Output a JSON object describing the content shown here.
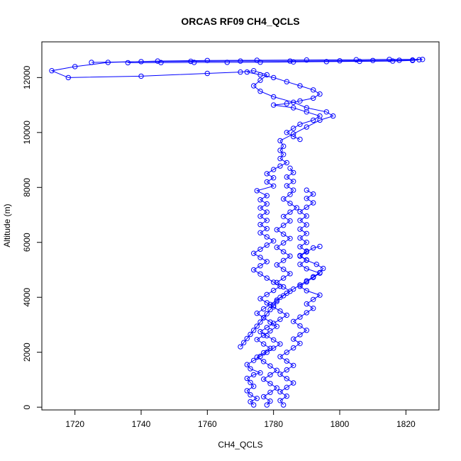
{
  "chart_data": {
    "type": "scatter",
    "title": "ORCAS RF09 CH4_QCLS",
    "xlabel": "CH4_QCLS",
    "ylabel": "Altitude (m)",
    "xlim": [
      1710,
      1830
    ],
    "ylim": [
      -100,
      13300
    ],
    "x_ticks": [
      1720,
      1740,
      1760,
      1780,
      1800,
      1820
    ],
    "x_tick_labels": [
      "1720",
      "1740",
      "1760",
      "1780",
      "1800",
      "1820"
    ],
    "y_ticks": [
      0,
      2000,
      4000,
      6000,
      8000,
      10000,
      12000
    ],
    "y_tick_labels": [
      "0",
      "2000",
      "4000",
      "6000",
      "8000",
      "10000",
      "12000"
    ],
    "grid": false,
    "legend": "none",
    "series_color": "#0000ff",
    "marker": "open-circle",
    "connect_points": true,
    "series": [
      {
        "values": [
          [
            1774,
            80
          ],
          [
            1773,
            200
          ],
          [
            1775,
            320
          ],
          [
            1773,
            450
          ],
          [
            1772,
            600
          ],
          [
            1774,
            760
          ],
          [
            1773,
            900
          ],
          [
            1772,
            1050
          ],
          [
            1774,
            1180
          ],
          [
            1776,
            1250
          ],
          [
            1773,
            1400
          ],
          [
            1772,
            1550
          ],
          [
            1774,
            1700
          ],
          [
            1776,
            1850
          ],
          [
            1778,
            2000
          ],
          [
            1780,
            2150
          ],
          [
            1782,
            2300
          ],
          [
            1780,
            2450
          ],
          [
            1778,
            2600
          ],
          [
            1776,
            2750
          ],
          [
            1778,
            2900
          ],
          [
            1780,
            3050
          ],
          [
            1782,
            3200
          ],
          [
            1784,
            3350
          ],
          [
            1782,
            3500
          ],
          [
            1780,
            3650
          ],
          [
            1778,
            3800
          ],
          [
            1776,
            3950
          ],
          [
            1778,
            4100
          ],
          [
            1780,
            4250
          ],
          [
            1782,
            4400
          ],
          [
            1780,
            4550
          ],
          [
            1778,
            4700
          ],
          [
            1776,
            4850
          ],
          [
            1774,
            5000
          ],
          [
            1776,
            5150
          ],
          [
            1778,
            5300
          ],
          [
            1776,
            5450
          ],
          [
            1774,
            5600
          ],
          [
            1776,
            5750
          ],
          [
            1778,
            5900
          ],
          [
            1780,
            6050
          ],
          [
            1778,
            6200
          ],
          [
            1776,
            6350
          ],
          [
            1778,
            6500
          ],
          [
            1776,
            6650
          ],
          [
            1778,
            6800
          ],
          [
            1776,
            6950
          ],
          [
            1778,
            7100
          ],
          [
            1776,
            7250
          ],
          [
            1778,
            7400
          ],
          [
            1776,
            7550
          ],
          [
            1778,
            7700
          ],
          [
            1775,
            7880
          ],
          [
            1780,
            8050
          ],
          [
            1778,
            8200
          ],
          [
            1780,
            8350
          ],
          [
            1778,
            8500
          ],
          [
            1780,
            8650
          ],
          [
            1782,
            8780
          ],
          [
            1784,
            8900
          ],
          [
            1782,
            9050
          ],
          [
            1783,
            9200
          ],
          [
            1782,
            9350
          ],
          [
            1783,
            9500
          ],
          [
            1782,
            9700
          ],
          [
            1786,
            9950
          ],
          [
            1790,
            10200
          ],
          [
            1794,
            10450
          ],
          [
            1798,
            10600
          ],
          [
            1796,
            10750
          ],
          [
            1790,
            10900
          ],
          [
            1786,
            11100
          ],
          [
            1780,
            11300
          ],
          [
            1776,
            11500
          ],
          [
            1774,
            11700
          ],
          [
            1776,
            11900
          ],
          [
            1778,
            12100
          ],
          [
            1774,
            12250
          ],
          [
            1770,
            12200
          ],
          [
            1760,
            12150
          ],
          [
            1740,
            12050
          ],
          [
            1718,
            12000
          ],
          [
            1713,
            12250
          ],
          [
            1720,
            12400
          ],
          [
            1730,
            12550
          ],
          [
            1745,
            12600
          ],
          [
            1760,
            12620
          ],
          [
            1775,
            12630
          ],
          [
            1790,
            12640
          ],
          [
            1805,
            12650
          ],
          [
            1815,
            12660
          ],
          [
            1825,
            12660
          ]
        ]
      },
      {
        "values": [
          [
            1778,
            80
          ],
          [
            1779,
            220
          ],
          [
            1777,
            380
          ],
          [
            1779,
            540
          ],
          [
            1781,
            700
          ],
          [
            1779,
            860
          ],
          [
            1777,
            1020
          ],
          [
            1779,
            1180
          ],
          [
            1781,
            1340
          ],
          [
            1779,
            1500
          ],
          [
            1777,
            1660
          ],
          [
            1775,
            1820
          ],
          [
            1777,
            1980
          ],
          [
            1779,
            2140
          ],
          [
            1777,
            2300
          ],
          [
            1775,
            2460
          ],
          [
            1777,
            2620
          ],
          [
            1779,
            2780
          ],
          [
            1781,
            2940
          ],
          [
            1779,
            3100
          ],
          [
            1777,
            3260
          ],
          [
            1775,
            3420
          ],
          [
            1777,
            3580
          ],
          [
            1779,
            3740
          ],
          [
            1781,
            3900
          ],
          [
            1783,
            4060
          ],
          [
            1785,
            4220
          ],
          [
            1783,
            4380
          ],
          [
            1781,
            4540
          ],
          [
            1783,
            4700
          ],
          [
            1785,
            4860
          ],
          [
            1783,
            5020
          ],
          [
            1781,
            5180
          ],
          [
            1783,
            5340
          ],
          [
            1785,
            5500
          ],
          [
            1783,
            5660
          ],
          [
            1781,
            5820
          ],
          [
            1783,
            5980
          ],
          [
            1785,
            6140
          ],
          [
            1783,
            6300
          ],
          [
            1781,
            6460
          ],
          [
            1783,
            6620
          ],
          [
            1785,
            6780
          ],
          [
            1783,
            6940
          ],
          [
            1785,
            7100
          ],
          [
            1787,
            7260
          ],
          [
            1785,
            7420
          ],
          [
            1783,
            7580
          ],
          [
            1785,
            7740
          ],
          [
            1786,
            7900
          ],
          [
            1784,
            8060
          ],
          [
            1786,
            8220
          ],
          [
            1784,
            8380
          ],
          [
            1786,
            8540
          ],
          [
            1785,
            8700
          ]
        ]
      },
      {
        "values": [
          [
            1783,
            80
          ],
          [
            1782,
            240
          ],
          [
            1784,
            400
          ],
          [
            1782,
            560
          ],
          [
            1784,
            720
          ],
          [
            1786,
            880
          ],
          [
            1784,
            1040
          ],
          [
            1782,
            1200
          ],
          [
            1784,
            1360
          ],
          [
            1786,
            1520
          ],
          [
            1784,
            1680
          ],
          [
            1782,
            1840
          ],
          [
            1784,
            2000
          ],
          [
            1786,
            2160
          ],
          [
            1788,
            2320
          ],
          [
            1786,
            2480
          ],
          [
            1788,
            2640
          ],
          [
            1790,
            2800
          ],
          [
            1788,
            2960
          ],
          [
            1786,
            3120
          ],
          [
            1788,
            3280
          ],
          [
            1790,
            3440
          ],
          [
            1792,
            3600
          ],
          [
            1790,
            3760
          ],
          [
            1792,
            3920
          ],
          [
            1794,
            4080
          ],
          [
            1790,
            4240
          ],
          [
            1788,
            4400
          ],
          [
            1790,
            4560
          ],
          [
            1792,
            4720
          ],
          [
            1794,
            4880
          ],
          [
            1790,
            5040
          ],
          [
            1788,
            5200
          ],
          [
            1790,
            5360
          ],
          [
            1788,
            5520
          ],
          [
            1790,
            5680
          ],
          [
            1788,
            5840
          ],
          [
            1790,
            6000
          ],
          [
            1788,
            6160
          ],
          [
            1790,
            6320
          ],
          [
            1788,
            6480
          ],
          [
            1790,
            6640
          ],
          [
            1788,
            6800
          ],
          [
            1790,
            6960
          ],
          [
            1788,
            7120
          ],
          [
            1790,
            7280
          ],
          [
            1792,
            7440
          ],
          [
            1790,
            7600
          ],
          [
            1792,
            7760
          ],
          [
            1790,
            7900
          ]
        ]
      },
      {
        "values": [
          [
            1770,
            2200
          ],
          [
            1771,
            2350
          ],
          [
            1772,
            2500
          ],
          [
            1773,
            2650
          ],
          [
            1774,
            2800
          ],
          [
            1775,
            2950
          ],
          [
            1776,
            3100
          ],
          [
            1777,
            3250
          ],
          [
            1778,
            3400
          ],
          [
            1779,
            3550
          ],
          [
            1780,
            3700
          ],
          [
            1781,
            3850
          ],
          [
            1782,
            4000
          ],
          [
            1784,
            4150
          ],
          [
            1786,
            4300
          ],
          [
            1788,
            4450
          ],
          [
            1790,
            4600
          ],
          [
            1792,
            4750
          ],
          [
            1794,
            4900
          ],
          [
            1795,
            5050
          ],
          [
            1793,
            5200
          ],
          [
            1790,
            5350
          ],
          [
            1788,
            5500
          ],
          [
            1790,
            5650
          ],
          [
            1792,
            5800
          ],
          [
            1794,
            5850
          ]
        ]
      },
      {
        "values": [
          [
            1772,
            12200
          ],
          [
            1776,
            12100
          ],
          [
            1780,
            12000
          ],
          [
            1784,
            11850
          ],
          [
            1788,
            11700
          ],
          [
            1792,
            11550
          ],
          [
            1794,
            11400
          ],
          [
            1792,
            11250
          ],
          [
            1788,
            11150
          ],
          [
            1784,
            11050
          ],
          [
            1780,
            11000
          ],
          [
            1786,
            10900
          ],
          [
            1790,
            10750
          ],
          [
            1794,
            10600
          ],
          [
            1792,
            10450
          ],
          [
            1788,
            10300
          ],
          [
            1786,
            10150
          ],
          [
            1784,
            10000
          ],
          [
            1786,
            9850
          ],
          [
            1788,
            9750
          ]
        ]
      },
      {
        "values": [
          [
            1725,
            12550
          ],
          [
            1740,
            12580
          ],
          [
            1755,
            12590
          ],
          [
            1770,
            12600
          ],
          [
            1785,
            12600
          ],
          [
            1800,
            12610
          ],
          [
            1810,
            12620
          ],
          [
            1818,
            12630
          ],
          [
            1822,
            12640
          ],
          [
            1824,
            12650
          ],
          [
            1822,
            12620
          ],
          [
            1816,
            12600
          ],
          [
            1806,
            12590
          ],
          [
            1796,
            12580
          ],
          [
            1786,
            12570
          ],
          [
            1776,
            12560
          ],
          [
            1766,
            12555
          ],
          [
            1756,
            12550
          ],
          [
            1746,
            12545
          ],
          [
            1736,
            12540
          ]
        ]
      }
    ]
  }
}
